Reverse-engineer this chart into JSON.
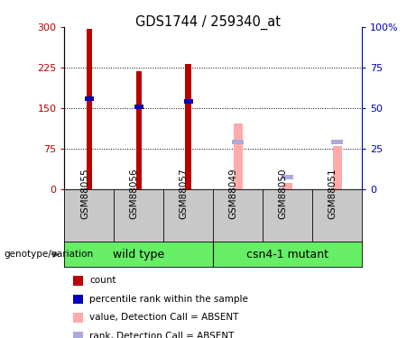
{
  "title": "GDS1744 / 259340_at",
  "categories": [
    "GSM88055",
    "GSM88056",
    "GSM88057",
    "GSM88049",
    "GSM88050",
    "GSM88051"
  ],
  "count_values": [
    297,
    218,
    232,
    null,
    null,
    null
  ],
  "rank_values": [
    168,
    153,
    162,
    null,
    null,
    null
  ],
  "absent_value_values": [
    null,
    null,
    null,
    122,
    12,
    80
  ],
  "absent_rank_values": [
    null,
    null,
    null,
    87,
    22,
    87
  ],
  "ylim_left": [
    0,
    300
  ],
  "ylim_right": [
    0,
    100
  ],
  "yticks_left": [
    0,
    75,
    150,
    225,
    300
  ],
  "yticks_right": [
    0,
    25,
    50,
    75,
    100
  ],
  "count_color": "#BB0000",
  "rank_color": "#0000BB",
  "absent_value_color": "#FFAAAA",
  "absent_rank_color": "#AAAADD",
  "group_label": "genotype/variation",
  "group1_name": "wild type",
  "group2_name": "csn4-1 mutant",
  "group_color": "#66EE66",
  "label_bg_color": "#C8C8C8",
  "legend_items": [
    {
      "color": "#BB0000",
      "label": "count"
    },
    {
      "color": "#0000BB",
      "label": "percentile rank within the sample"
    },
    {
      "color": "#FFAAAA",
      "label": "value, Detection Call = ABSENT"
    },
    {
      "color": "#AAAADD",
      "label": "rank, Detection Call = ABSENT"
    }
  ]
}
